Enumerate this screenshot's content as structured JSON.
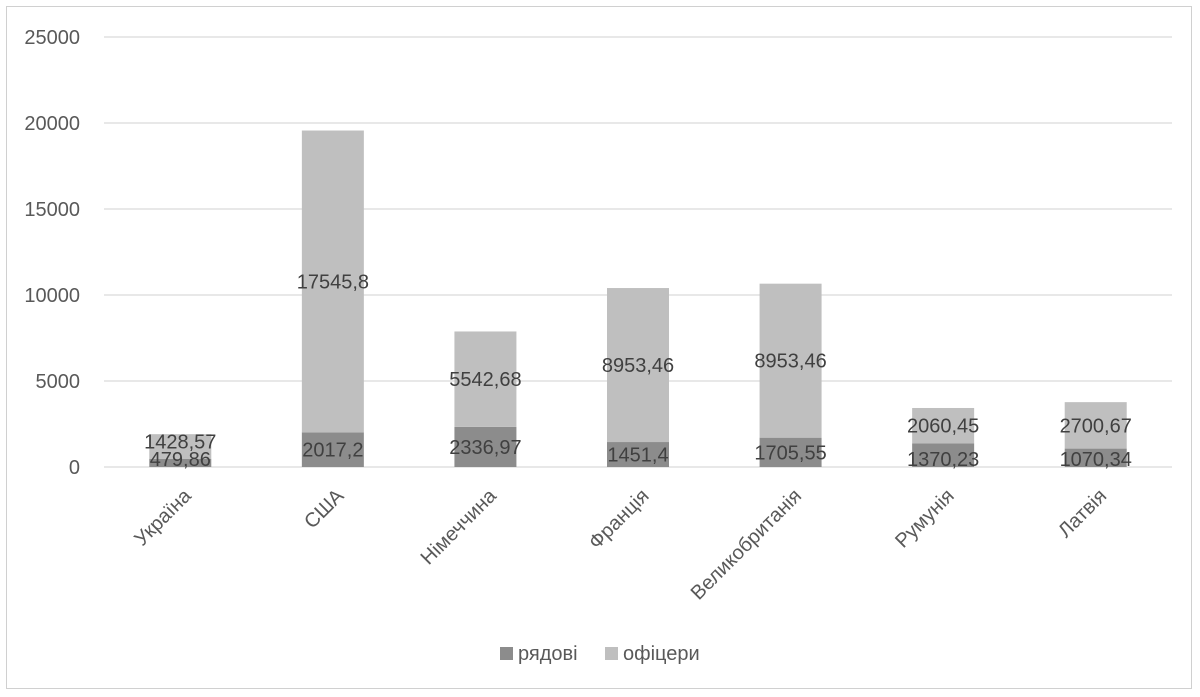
{
  "chart_data": {
    "type": "bar",
    "stacked": true,
    "categories": [
      "Україна",
      "США",
      "Німеччина",
      "Франція",
      "Великобританія",
      "Румунія",
      "Латвія"
    ],
    "series": [
      {
        "name": "рядові",
        "color": "#8c8c8c",
        "values": [
          479.86,
          2017.2,
          2336.97,
          1451.4,
          1705.55,
          1370.23,
          1070.34
        ],
        "labels": [
          "479,86",
          "2017,2",
          "2336,97",
          "1451,4",
          "1705,55",
          "1370,23",
          "1070,34"
        ]
      },
      {
        "name": "офіцери",
        "color": "#bfbfbf",
        "values": [
          1428.57,
          17545.8,
          5542.68,
          8953.46,
          8953.46,
          2060.45,
          2700.67
        ],
        "labels": [
          "1428,57",
          "17545,8",
          "5542,68",
          "8953,46",
          "8953,46",
          "2060,45",
          "2700,67"
        ]
      }
    ],
    "ylim": [
      0,
      25000
    ],
    "yticks": [
      0,
      5000,
      10000,
      15000,
      20000,
      25000
    ],
    "grid": true,
    "legend_position": "bottom",
    "title": "",
    "xlabel": "",
    "ylabel": ""
  }
}
